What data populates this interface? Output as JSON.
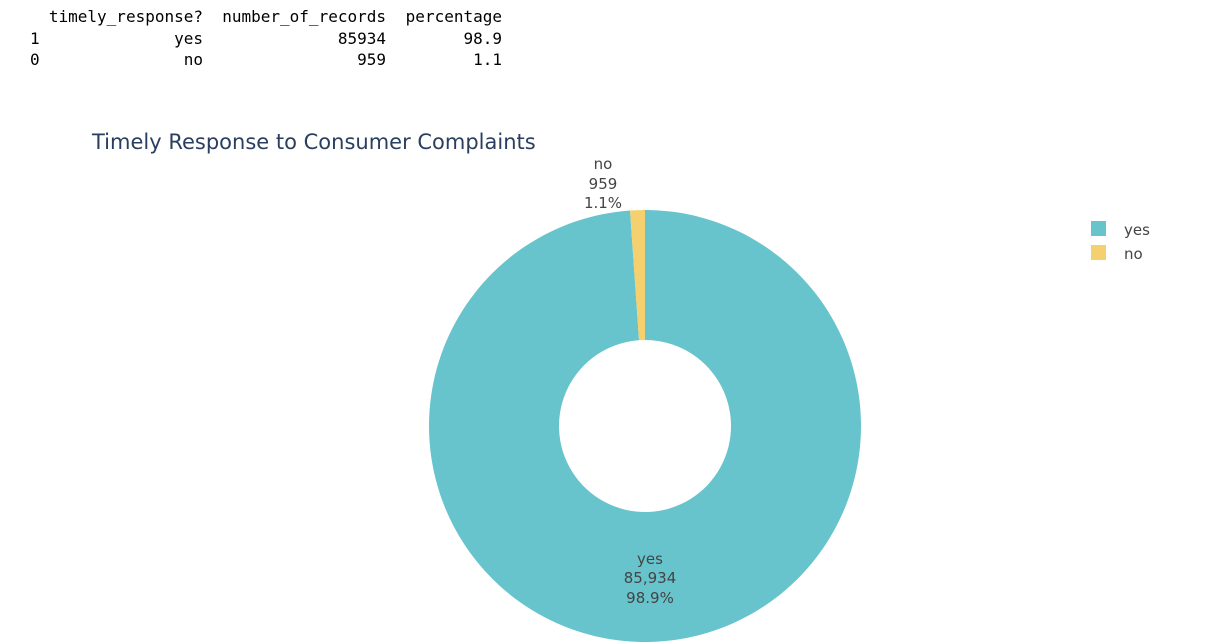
{
  "table": {
    "headers": [
      "timely_response?",
      "number_of_records",
      "percentage"
    ],
    "rows": [
      {
        "index": "1",
        "cells": [
          "yes",
          "85934",
          "98.9"
        ]
      },
      {
        "index": "0",
        "cells": [
          "no",
          "959",
          "1.1"
        ]
      }
    ]
  },
  "chart_data": {
    "type": "pie",
    "hole": true,
    "title": "Timely Response to Consumer Complaints",
    "legend_position": "right",
    "slices": [
      {
        "label": "yes",
        "value": 85934,
        "value_text": "85,934",
        "percent_text": "98.9%",
        "color": "#67c4cc"
      },
      {
        "label": "no",
        "value": 959,
        "value_text": "959",
        "percent_text": "1.1%",
        "color": "#f4d06f"
      }
    ],
    "legend": [
      "yes",
      "no"
    ]
  }
}
